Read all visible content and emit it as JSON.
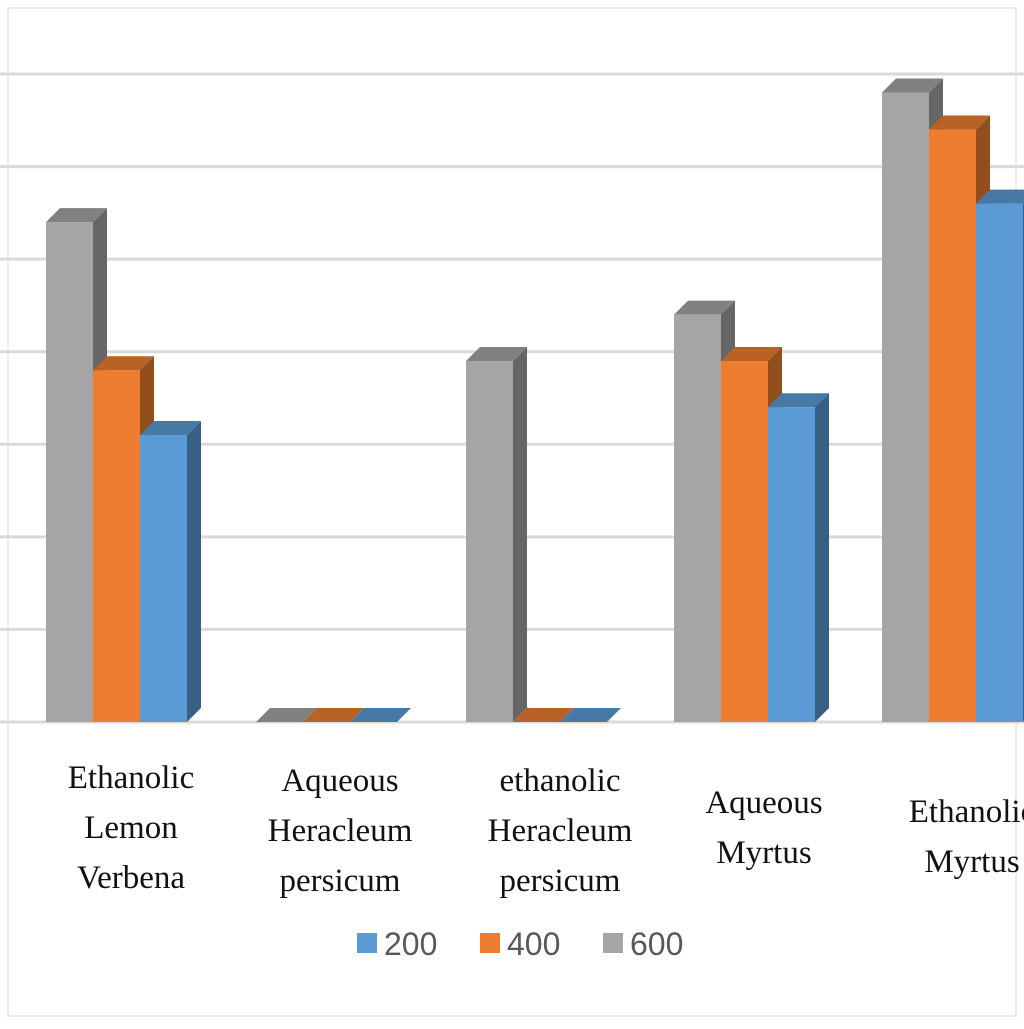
{
  "chart_data": {
    "type": "bar",
    "title": "",
    "xlabel": "",
    "ylabel": "",
    "categories": [
      [
        "Ethanolic",
        "Lemon",
        "Verbena"
      ],
      [
        "Aqueous",
        "Heracleum",
        "persicum"
      ],
      [
        "ethanolic",
        "Heracleum",
        "persicum"
      ],
      [
        "Aqueous",
        "Myrtus"
      ],
      [
        "Ethanolic",
        "Myrtus"
      ]
    ],
    "series": [
      {
        "name": "200",
        "color": "#5B9BD5",
        "values": [
          3.1,
          0,
          0,
          3.4,
          5.6
        ]
      },
      {
        "name": "400",
        "color": "#ED7D31",
        "values": [
          3.8,
          0,
          0,
          3.9,
          6.4
        ]
      },
      {
        "name": "600",
        "color": "#A5A5A5",
        "values": [
          5.4,
          0,
          3.9,
          4.4,
          6.8
        ]
      }
    ],
    "ylim": [
      0,
      7
    ],
    "grid": true,
    "legend": "bottom",
    "bar_order": [
      "600",
      "400",
      "200"
    ]
  }
}
